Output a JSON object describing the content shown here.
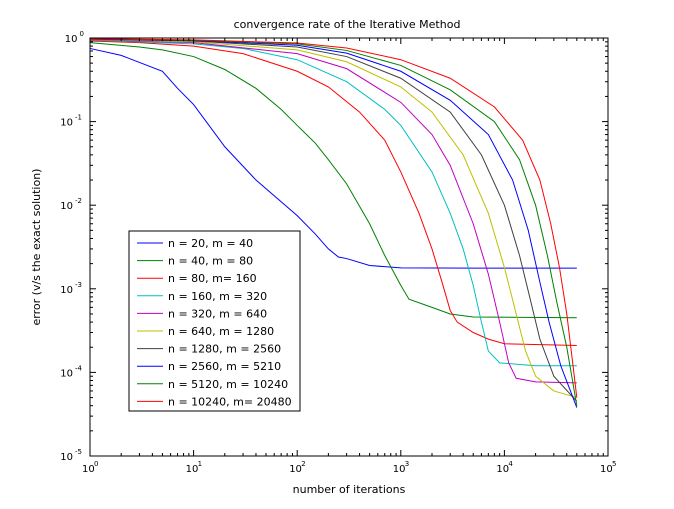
{
  "chart_data": {
    "type": "line",
    "title": "convergence rate of the Iterative Method",
    "xlabel": "number of iterations",
    "ylabel": "error (v/s the exact solution)",
    "xscale": "log",
    "yscale": "log",
    "xlim": [
      1,
      100000
    ],
    "ylim": [
      1e-05,
      1
    ],
    "grid": false,
    "legend_position": "lower-left",
    "xticks": [
      {
        "base": "10",
        "exp": "0",
        "value": 1
      },
      {
        "base": "10",
        "exp": "1",
        "value": 10
      },
      {
        "base": "10",
        "exp": "2",
        "value": 100
      },
      {
        "base": "10",
        "exp": "3",
        "value": 1000
      },
      {
        "base": "10",
        "exp": "4",
        "value": 10000
      },
      {
        "base": "10",
        "exp": "5",
        "value": 100000
      }
    ],
    "yticks": [
      {
        "base": "10",
        "exp": "0",
        "value": 1
      },
      {
        "base": "10",
        "exp": "-1",
        "value": 0.1
      },
      {
        "base": "10",
        "exp": "-2",
        "value": 0.01
      },
      {
        "base": "10",
        "exp": "-3",
        "value": 0.001
      },
      {
        "base": "10",
        "exp": "-4",
        "value": 0.0001
      },
      {
        "base": "10",
        "exp": "-5",
        "value": 1e-05
      }
    ],
    "series": [
      {
        "name": "n = 20, m = 40",
        "color": "#0000ff",
        "points": [
          [
            1,
            0.75
          ],
          [
            2,
            0.62
          ],
          [
            3,
            0.51
          ],
          [
            5,
            0.4
          ],
          [
            7,
            0.25
          ],
          [
            10,
            0.16
          ],
          [
            20,
            0.05
          ],
          [
            40,
            0.02
          ],
          [
            70,
            0.011
          ],
          [
            100,
            0.0075
          ],
          [
            150,
            0.0045
          ],
          [
            200,
            0.003
          ],
          [
            250,
            0.0024
          ],
          [
            300,
            0.0023
          ],
          [
            500,
            0.0019
          ],
          [
            1000,
            0.00178
          ],
          [
            5000,
            0.00177
          ],
          [
            50000,
            0.00177
          ]
        ]
      },
      {
        "name": "n = 40, m = 80",
        "color": "#008000",
        "points": [
          [
            1,
            0.88
          ],
          [
            3,
            0.78
          ],
          [
            5,
            0.72
          ],
          [
            10,
            0.6
          ],
          [
            20,
            0.42
          ],
          [
            40,
            0.25
          ],
          [
            70,
            0.14
          ],
          [
            100,
            0.09
          ],
          [
            150,
            0.055
          ],
          [
            200,
            0.035
          ],
          [
            300,
            0.018
          ],
          [
            500,
            0.006
          ],
          [
            700,
            0.0025
          ],
          [
            1000,
            0.0011
          ],
          [
            1200,
            0.00075
          ],
          [
            2000,
            0.0006
          ],
          [
            3000,
            0.0005
          ],
          [
            5000,
            0.00046
          ],
          [
            50000,
            0.00045
          ]
        ]
      },
      {
        "name": "n = 80, m= 160",
        "color": "#ff0000",
        "points": [
          [
            1,
            0.92
          ],
          [
            3,
            0.88
          ],
          [
            10,
            0.8
          ],
          [
            30,
            0.65
          ],
          [
            100,
            0.4
          ],
          [
            200,
            0.26
          ],
          [
            400,
            0.13
          ],
          [
            700,
            0.06
          ],
          [
            1000,
            0.025
          ],
          [
            1500,
            0.008
          ],
          [
            2000,
            0.003
          ],
          [
            2500,
            0.0012
          ],
          [
            3000,
            0.00055
          ],
          [
            3500,
            0.0004
          ],
          [
            5000,
            0.0003
          ],
          [
            7000,
            0.00025
          ],
          [
            10000,
            0.00022
          ],
          [
            50000,
            0.00021
          ]
        ]
      },
      {
        "name": "n = 160, m = 320",
        "color": "#00bfbf",
        "points": [
          [
            1,
            0.94
          ],
          [
            10,
            0.85
          ],
          [
            30,
            0.75
          ],
          [
            100,
            0.55
          ],
          [
            300,
            0.3
          ],
          [
            700,
            0.14
          ],
          [
            1000,
            0.09
          ],
          [
            2000,
            0.025
          ],
          [
            3000,
            0.008
          ],
          [
            4000,
            0.003
          ],
          [
            5000,
            0.0011
          ],
          [
            6000,
            0.0004
          ],
          [
            7000,
            0.00018
          ],
          [
            9000,
            0.00013
          ],
          [
            20000,
            0.00012
          ],
          [
            50000,
            0.00012
          ]
        ]
      },
      {
        "name": "n = 320, m = 640",
        "color": "#bf00bf",
        "points": [
          [
            1,
            0.95
          ],
          [
            10,
            0.88
          ],
          [
            100,
            0.65
          ],
          [
            300,
            0.43
          ],
          [
            1000,
            0.17
          ],
          [
            2000,
            0.07
          ],
          [
            3000,
            0.03
          ],
          [
            5000,
            0.006
          ],
          [
            7000,
            0.0015
          ],
          [
            9000,
            0.0004
          ],
          [
            11000,
            0.00013
          ],
          [
            13000,
            8.5e-05
          ],
          [
            20000,
            7.7e-05
          ],
          [
            50000,
            7.5e-05
          ]
        ]
      },
      {
        "name": "n = 640, m = 1280",
        "color": "#bfbf00",
        "points": [
          [
            1,
            0.96
          ],
          [
            10,
            0.9
          ],
          [
            100,
            0.72
          ],
          [
            300,
            0.52
          ],
          [
            1000,
            0.26
          ],
          [
            2000,
            0.13
          ],
          [
            4000,
            0.04
          ],
          [
            7000,
            0.008
          ],
          [
            10000,
            0.0018
          ],
          [
            13000,
            0.0005
          ],
          [
            16000,
            0.00018
          ],
          [
            20000,
            9e-05
          ],
          [
            30000,
            6e-05
          ],
          [
            50000,
            5e-05
          ]
        ]
      },
      {
        "name": "n = 1280, m = 2560",
        "color": "#404040",
        "points": [
          [
            1,
            0.97
          ],
          [
            10,
            0.92
          ],
          [
            100,
            0.78
          ],
          [
            300,
            0.6
          ],
          [
            1000,
            0.33
          ],
          [
            3000,
            0.13
          ],
          [
            6000,
            0.04
          ],
          [
            10000,
            0.01
          ],
          [
            14000,
            0.0025
          ],
          [
            18000,
            0.0007
          ],
          [
            22000,
            0.00025
          ],
          [
            30000,
            9e-05
          ],
          [
            50000,
            4.5e-05
          ]
        ]
      },
      {
        "name": "n = 2560, m = 5210",
        "color": "#0000ff",
        "points": [
          [
            1,
            0.97
          ],
          [
            10,
            0.93
          ],
          [
            100,
            0.82
          ],
          [
            300,
            0.66
          ],
          [
            1000,
            0.4
          ],
          [
            3000,
            0.18
          ],
          [
            7000,
            0.07
          ],
          [
            12000,
            0.02
          ],
          [
            17000,
            0.005
          ],
          [
            22000,
            0.0012
          ],
          [
            27000,
            0.0004
          ],
          [
            35000,
            0.00012
          ],
          [
            50000,
            3.8e-05
          ]
        ]
      },
      {
        "name": "n = 5120, m = 10240",
        "color": "#008000",
        "points": [
          [
            1,
            0.98
          ],
          [
            10,
            0.94
          ],
          [
            100,
            0.85
          ],
          [
            300,
            0.71
          ],
          [
            1000,
            0.47
          ],
          [
            3000,
            0.24
          ],
          [
            8000,
            0.1
          ],
          [
            14000,
            0.035
          ],
          [
            20000,
            0.01
          ],
          [
            26000,
            0.0025
          ],
          [
            32000,
            0.0007
          ],
          [
            40000,
            0.0002
          ],
          [
            50000,
            4e-05
          ]
        ]
      },
      {
        "name": "n = 10240, m= 20480",
        "color": "#ff0000",
        "points": [
          [
            1,
            0.98
          ],
          [
            10,
            0.95
          ],
          [
            100,
            0.87
          ],
          [
            300,
            0.76
          ],
          [
            1000,
            0.55
          ],
          [
            3000,
            0.33
          ],
          [
            8000,
            0.15
          ],
          [
            15000,
            0.06
          ],
          [
            22000,
            0.02
          ],
          [
            28000,
            0.006
          ],
          [
            34000,
            0.0018
          ],
          [
            40000,
            0.0005
          ],
          [
            45000,
            0.00015
          ],
          [
            50000,
            5e-05
          ]
        ]
      }
    ]
  }
}
